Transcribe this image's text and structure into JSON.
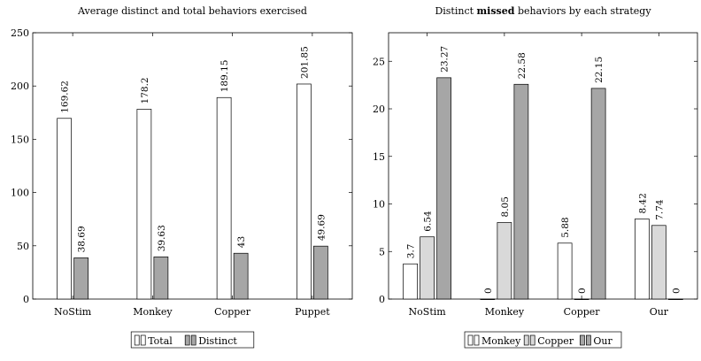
{
  "chart_data": [
    {
      "type": "bar",
      "title": "Average distinct and total behaviors exercised",
      "categories": [
        "NoStim",
        "Monkey",
        "Copper",
        "Puppet"
      ],
      "ylim": [
        0,
        250
      ],
      "yticks": [
        0,
        50,
        100,
        150,
        200,
        250
      ],
      "grid": false,
      "legend_position": "bottom",
      "series": [
        {
          "name": "Total",
          "color": "#ffffff",
          "values": [
            169.62,
            178.2,
            189.15,
            201.85
          ],
          "labels": [
            "169.62",
            "178.2",
            "189.15",
            "201.85"
          ]
        },
        {
          "name": "Distinct",
          "color": "#a6a6a6",
          "values": [
            38.69,
            39.63,
            43,
            49.69
          ],
          "labels": [
            "38.69",
            "39.63",
            "43",
            "49.69"
          ]
        }
      ]
    },
    {
      "type": "bar",
      "title_parts": [
        "Distinct ",
        "missed",
        " behaviors by each strategy"
      ],
      "categories": [
        "NoStim",
        "Monkey",
        "Copper",
        "Our"
      ],
      "ylim": [
        0,
        28
      ],
      "yticks": [
        0,
        5,
        10,
        15,
        20,
        25
      ],
      "grid": false,
      "legend_position": "bottom",
      "series": [
        {
          "name": "Monkey",
          "color": "#ffffff",
          "values": [
            3.7,
            0,
            5.88,
            8.42
          ],
          "labels": [
            "3.7",
            "0",
            "5.88",
            "8.42"
          ]
        },
        {
          "name": "Copper",
          "color": "#d9d9d9",
          "values": [
            6.54,
            8.05,
            0,
            7.74
          ],
          "labels": [
            "6.54",
            "8.05",
            "0",
            "7.74"
          ]
        },
        {
          "name": "Our",
          "color": "#a6a6a6",
          "values": [
            23.27,
            22.58,
            22.15,
            0
          ],
          "labels": [
            "23.27",
            "22.58",
            "22.15",
            "0"
          ]
        }
      ]
    }
  ]
}
